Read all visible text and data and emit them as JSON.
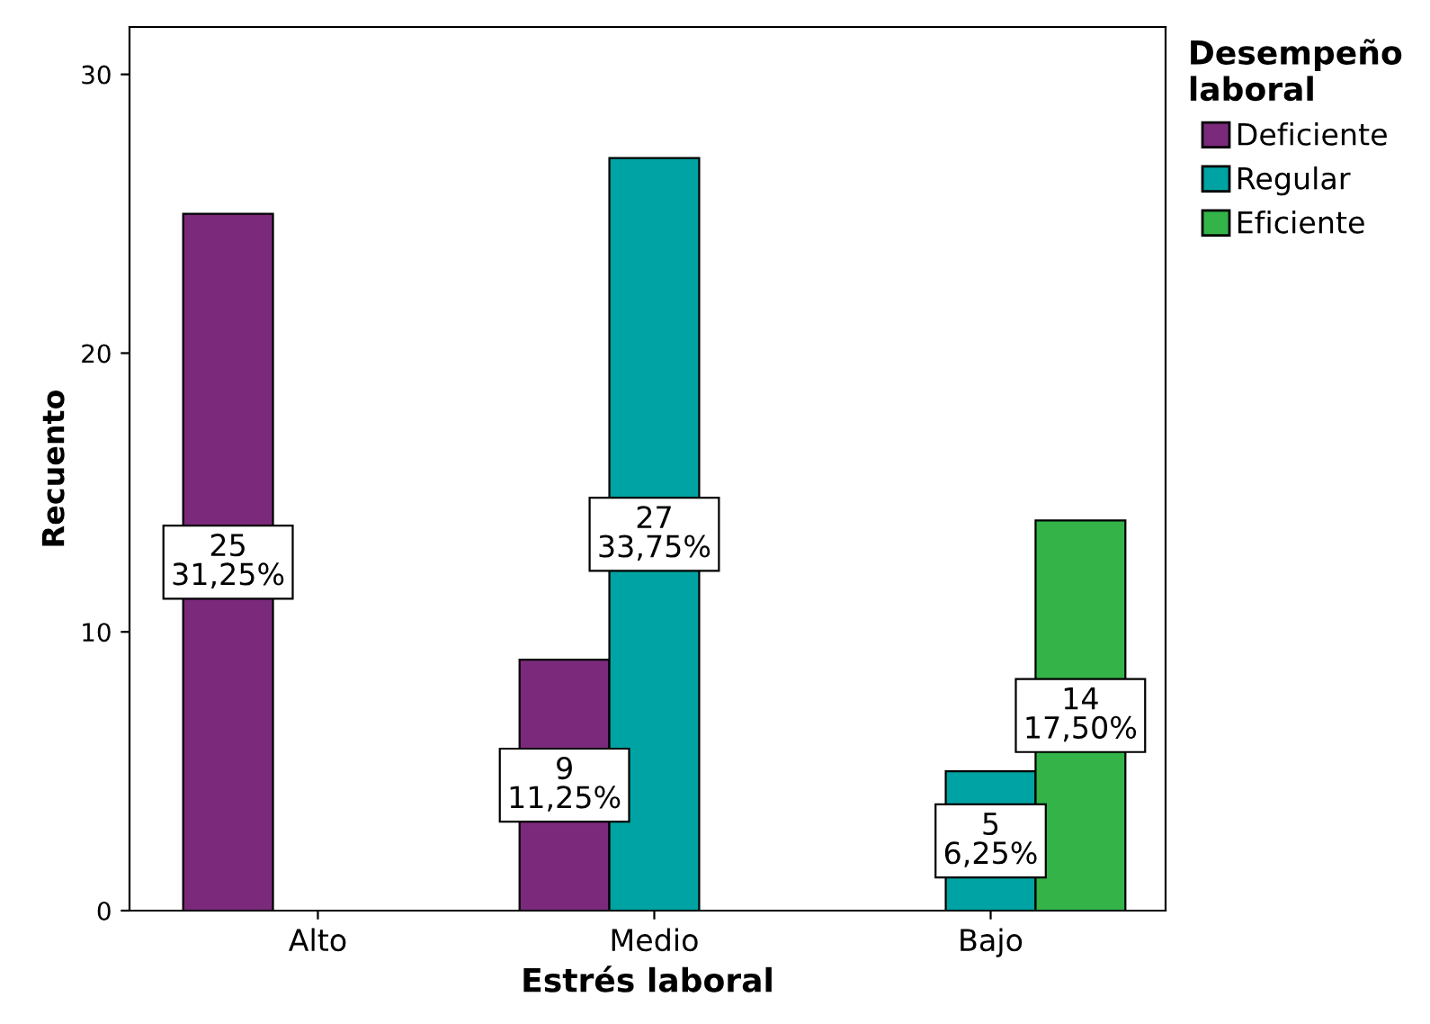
{
  "chart_data": {
    "type": "bar",
    "xlabel": "Estrés laboral",
    "ylabel": "Recuento",
    "legend_title": "Desempeño\nlaboral",
    "categories": [
      "Alto",
      "Medio",
      "Bajo"
    ],
    "series": [
      {
        "name": "Deficiente",
        "color": "#7b2a7b",
        "values": [
          25,
          9,
          null
        ],
        "value_labels": [
          "25\n31,25%",
          "9\n11,25%",
          null
        ]
      },
      {
        "name": "Regular",
        "color": "#00a3a3",
        "values": [
          null,
          27,
          5
        ],
        "value_labels": [
          null,
          "27\n33,75%",
          "5\n6,25%"
        ]
      },
      {
        "name": "Eficiente",
        "color": "#33b348",
        "values": [
          null,
          null,
          14
        ],
        "value_labels": [
          null,
          null,
          "14\n17,50%"
        ]
      }
    ],
    "ylim": [
      0,
      31.7
    ],
    "yticks": [
      0,
      10,
      20,
      30
    ],
    "grid": false,
    "legend": "top right"
  }
}
